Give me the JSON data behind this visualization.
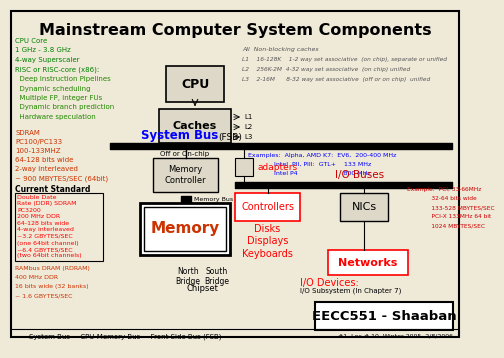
{
  "title": "Mainstream Computer System Components",
  "bg_color": "#efe9d8",
  "title_color": "#000000",
  "footer": "System Bus = CPU-Memory Bus = Front Side Bus (FSB)",
  "footer_right": "#1  Lec # 10  Winter 2005  2/8/2006",
  "eecc_label": "EECC551 - Shaaban",
  "cpu_label": "CPU",
  "caches_label": "Caches",
  "memory_ctrl_label": "Memory\nController",
  "memory_label": "Memory",
  "system_bus_label": "System Bus",
  "fsb_label": "(FSB)",
  "adapters_label": "adapters",
  "io_buses_label": "I/O Buses",
  "controllers_label": "Controllers",
  "nics_label": "NICs",
  "networks_label": "Networks",
  "disks_label": "Disks\nDisplays\nKeyboards",
  "io_devices_label": "I/O Devices:",
  "io_subsystem_label": "I/O Subsystem (In Chapter 7)",
  "chipset_label": "Chipset",
  "north_bridge_label": "North\nBridge",
  "south_bridge_label": "South\nBridge",
  "off_onchip_label": "Off or On-chip",
  "memory_bus_label": "Memory Bus",
  "cpu_core_text_lines": [
    "CPU Core",
    "1 GHz - 3.8 GHz",
    "4-way Superscaler",
    "RISC or RISC-core (x86):",
    "  Deep Instruction Pipelines",
    "  Dynamic scheduling",
    "  Multiple FP, integer FUs",
    "  Dynamic branch prediction",
    "  Hardware speculation"
  ],
  "cpu_core_colors": [
    "green",
    "green",
    "green",
    "green",
    "#228800",
    "#228800",
    "#228800",
    "#228800",
    "#228800"
  ],
  "sdram_text_lines": [
    "SDRAM",
    "PC100/PC133",
    "100-133MHZ",
    "64-128 bits wide",
    "2-way interleaved",
    "~ 900 MBYTES/SEC (64bit)"
  ],
  "current_std_label": "Current Standard",
  "ddr_text_lines": [
    "Double Date",
    "Rate (DDR) SDRAM",
    "PC3200",
    "200 MHz DDR",
    "64-128 bits wide",
    "4-way interleaved",
    "~3.2 GBYTES/SEC",
    "(one 64bit channel)",
    "~6.4 GBYTES/SEC",
    "(two 64bit channels)"
  ],
  "rdram_text_lines": [
    "RAMbus DRAM (RDRAM)",
    "400 MHz DDR",
    "16 bits wide (32 banks)",
    "~ 1.6 GBYTES/SEC"
  ],
  "cache_text_title": "All  Non-blocking caches",
  "cache_l1": "L1    16-128K    1-2 way set associative  (on chip), separate or unified",
  "cache_l2": "L2    256K-2M  4-32 way set associative  (on chip) unified",
  "cache_l3": "L3    2-16M      8-32 way set associative  (off or on chip)  unified",
  "system_bus_examples_lines": [
    "Examples:  Alpha, AMD K7:  EV6,  200-400 MHz",
    "             Intel  PII, PIII:  GTL+    133 MHz",
    "             Intel P4                       800 MHz"
  ],
  "pci_example_lines": [
    "Example:  PCI, 33-66MHz",
    "             32-64 bits wide",
    "             133-528 MBYTES/SEC",
    "             PCI-X 133MHz 64 bit",
    "             1024 MBYTES/SEC"
  ],
  "l1_label": "L1",
  "l2_label": "L2",
  "l3_label": "L3"
}
